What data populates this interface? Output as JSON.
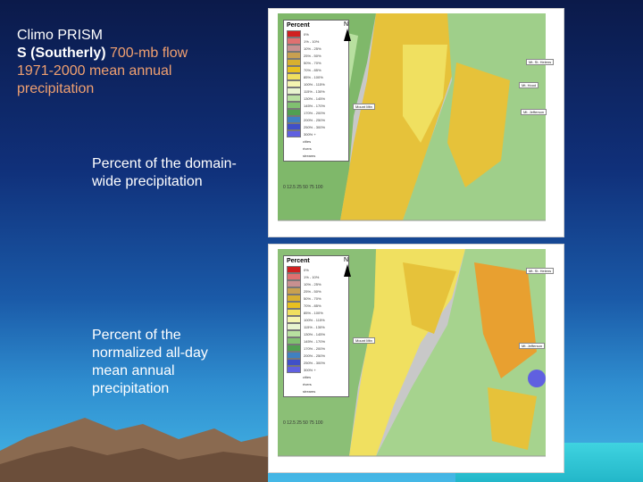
{
  "slide": {
    "title_line1": "Climo PRISM",
    "title_bold": "S (Southerly)",
    "title_orange_1": " 700-mb flow",
    "title_orange_2": "1971-2000 mean annual",
    "title_orange_3": "precipitation",
    "caption_top": "Percent of the domain-wide precipitation",
    "caption_bottom": "Percent of the normalized all-day mean annual precipitation"
  },
  "map": {
    "legend_title": "Percent",
    "north_label": "N",
    "scale_label": "0  12.5  25    50    75   100",
    "legend_items": [
      {
        "label": "0%",
        "color": "#d02020"
      },
      {
        "label": "1% - 10%",
        "color": "#e07070"
      },
      {
        "label": "10% - 25%",
        "color": "#c89090"
      },
      {
        "label": "25% - 50%",
        "color": "#c8a050"
      },
      {
        "label": "50% - 70%",
        "color": "#d8b030"
      },
      {
        "label": "70% - 85%",
        "color": "#e8c020"
      },
      {
        "label": "85% - 100%",
        "color": "#f0e060"
      },
      {
        "label": "100% - 115%",
        "color": "#f4f4b0"
      },
      {
        "label": "115% - 130%",
        "color": "#e8f4d0"
      },
      {
        "label": "130% - 145%",
        "color": "#b8e0a0"
      },
      {
        "label": "145% - 170%",
        "color": "#80c070"
      },
      {
        "label": "170% - 200%",
        "color": "#50a050"
      },
      {
        "label": "200% - 250%",
        "color": "#4080c0"
      },
      {
        "label": "250% - 300%",
        "color": "#4050c8"
      },
      {
        "label": "300% +",
        "color": "#6060e0"
      }
    ],
    "extra_legend": [
      "cities",
      "rivers",
      "streams"
    ],
    "place_labels": [
      "Mt. St. Helens",
      "Mt. Hood",
      "Mt. Jefferson",
      "Mount Mtn",
      "Corvallis",
      "Salem"
    ]
  }
}
